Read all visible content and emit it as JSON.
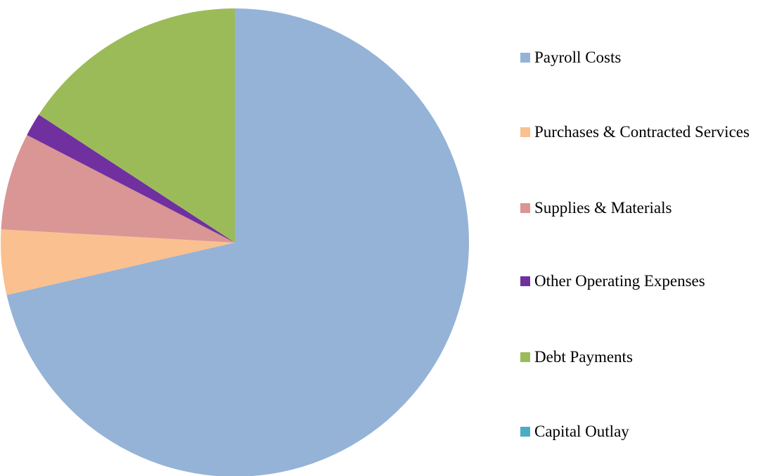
{
  "chart_data": {
    "type": "pie",
    "categories": [
      "Payroll Costs",
      "Purchases & Contracted Services",
      "Supplies & Materials",
      "Other Operating Expenses",
      "Debt Payments",
      "Capital Outlay"
    ],
    "values": [
      71.4,
      4.5,
      6.7,
      1.6,
      15.8,
      0
    ],
    "colors": [
      "#95b3d7",
      "#fac090",
      "#d99694",
      "#7030a0",
      "#9bbb59",
      "#4bacc6"
    ],
    "legend": "right"
  }
}
